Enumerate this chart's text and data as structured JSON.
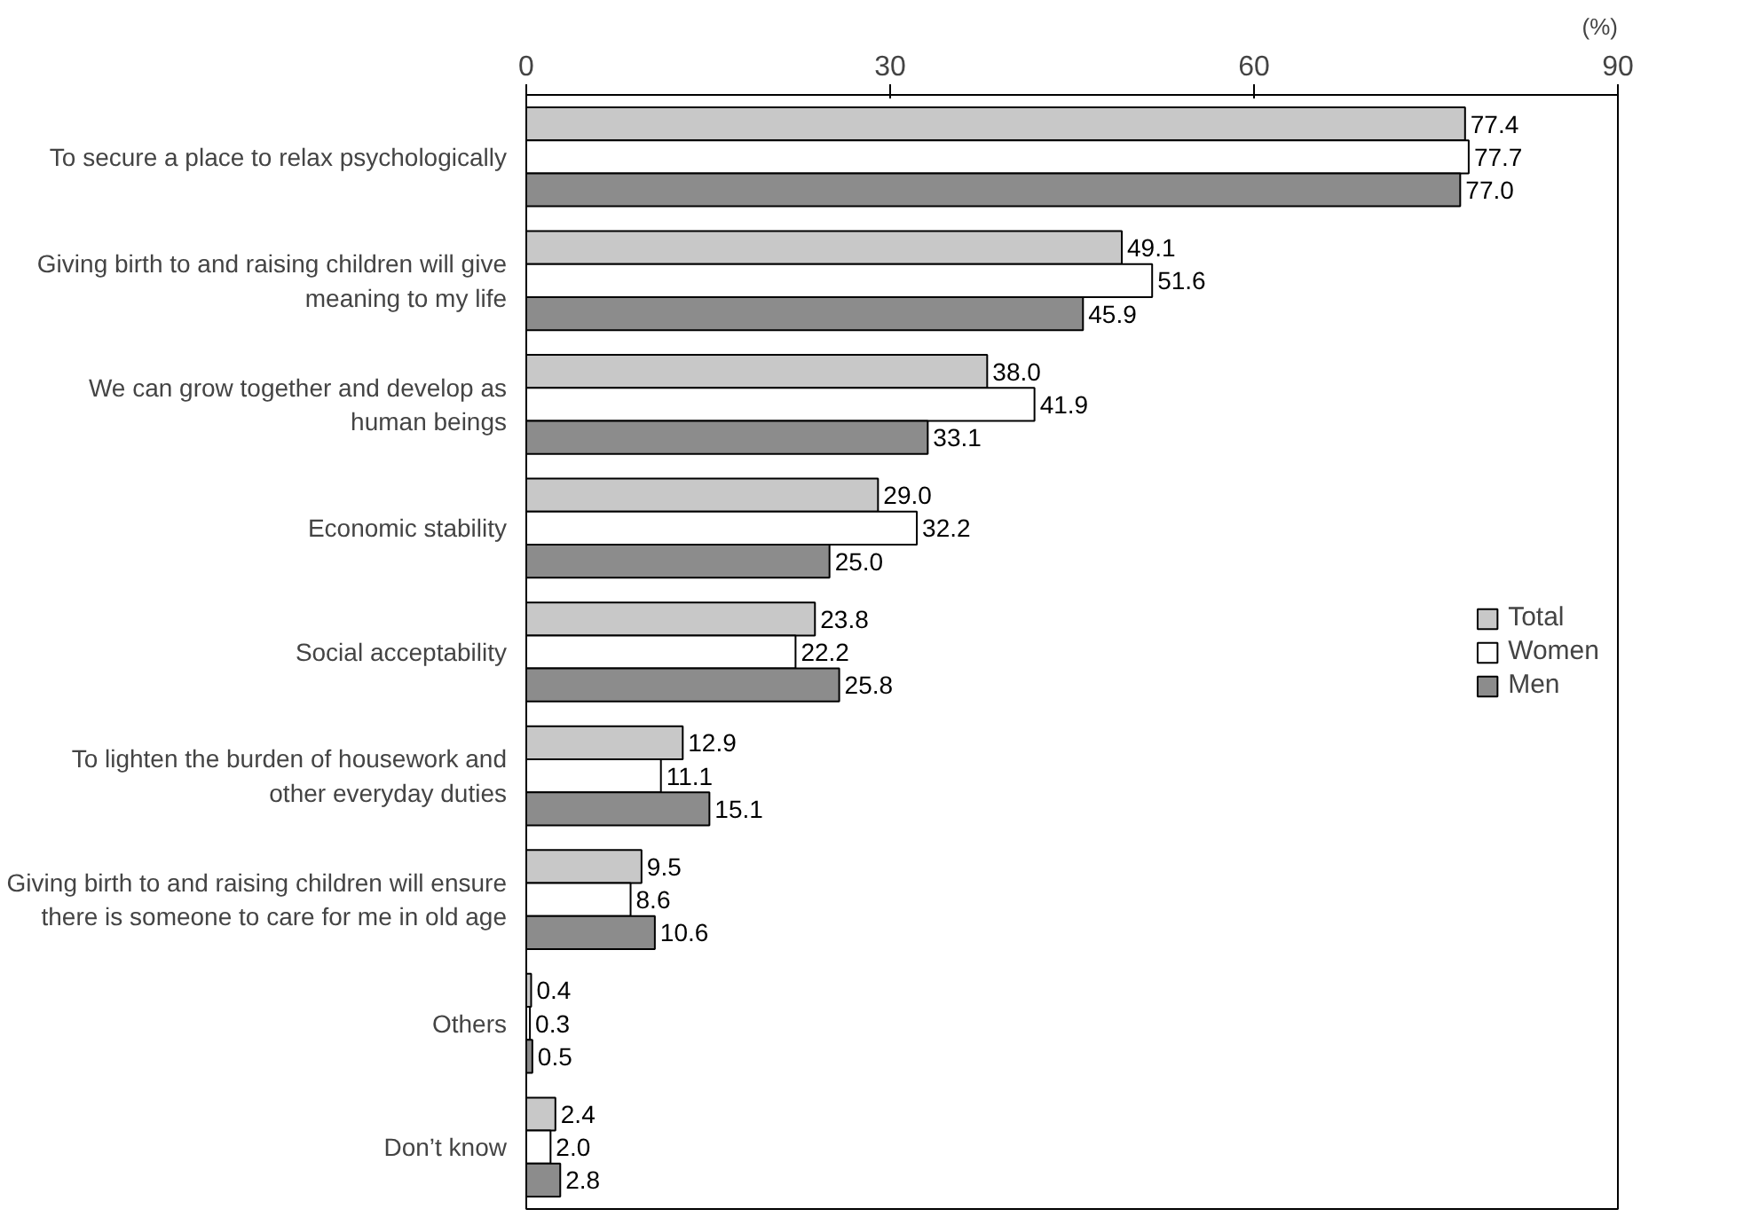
{
  "chart_data": {
    "type": "bar",
    "orientation": "horizontal",
    "xlabel": "(%)",
    "categories": [
      "To secure a place to relax psychologically",
      "Giving birth to and raising children will give\nmeaning to my life",
      "We can grow together and develop as\nhuman beings",
      "Economic stability",
      "Social acceptability",
      "To lighten the burden of housework and\nother everyday duties",
      "Giving birth to and raising children will ensure\nthere is someone to care for me in old age",
      "Others",
      "Don’t know"
    ],
    "series": [
      {
        "name": "Total",
        "color": "#c8c8c8",
        "values": [
          77.4,
          49.1,
          38.0,
          29.0,
          23.8,
          12.9,
          9.5,
          0.4,
          2.4
        ],
        "value_labels": [
          "77.4",
          "49.1",
          "38.0",
          "29.0",
          "23.8",
          "12.9",
          "9.5",
          "0.4",
          "2.4"
        ]
      },
      {
        "name": "Women",
        "color": "#ffffff",
        "values": [
          77.7,
          51.6,
          41.9,
          32.2,
          22.2,
          11.1,
          8.6,
          0.3,
          2.0
        ],
        "value_labels": [
          "77.7",
          "51.6",
          "41.9",
          "32.2",
          "22.2",
          "11.1",
          "8.6",
          "0.3",
          "2.0"
        ]
      },
      {
        "name": "Men",
        "color": "#8c8c8c",
        "values": [
          77.0,
          45.9,
          33.1,
          25.0,
          25.8,
          15.1,
          10.6,
          0.5,
          2.8
        ],
        "value_labels": [
          "77.0",
          "45.9",
          "33.1",
          "25.0",
          "25.8",
          "15.1",
          "10.6",
          "0.5",
          "2.8"
        ]
      }
    ],
    "xlim": [
      0,
      90
    ],
    "xticks": [
      0,
      30,
      60,
      90
    ],
    "grid": false,
    "legend": "right"
  }
}
